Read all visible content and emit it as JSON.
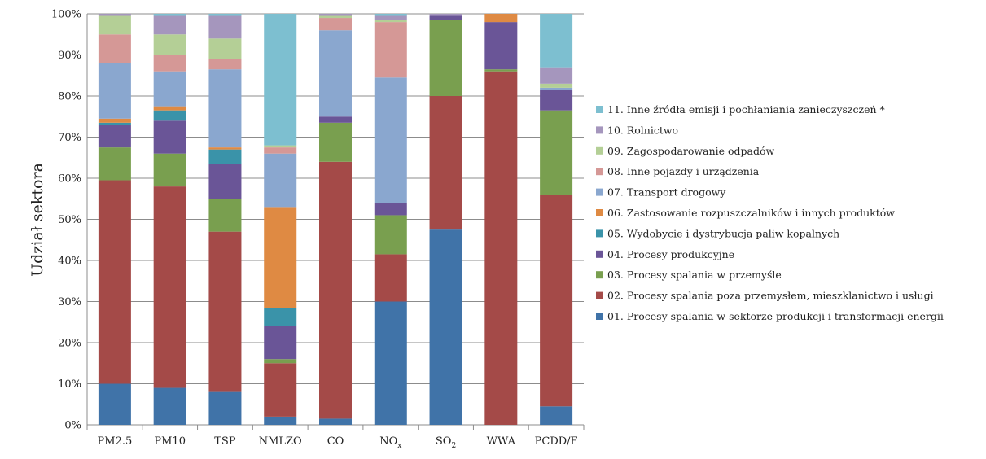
{
  "chart_data": {
    "type": "bar",
    "stacked": true,
    "percent": true,
    "ylabel": "Udział sektora",
    "xlabel": "",
    "ylim": [
      0,
      100
    ],
    "yticks": [
      "0%",
      "10%",
      "20%",
      "30%",
      "40%",
      "50%",
      "60%",
      "70%",
      "80%",
      "90%",
      "100%"
    ],
    "grid": true,
    "legend_position": "right",
    "categories": [
      {
        "base": "PM2.5",
        "sub": ""
      },
      {
        "base": "PM10",
        "sub": ""
      },
      {
        "base": "TSP",
        "sub": ""
      },
      {
        "base": "NMLZO",
        "sub": ""
      },
      {
        "base": "CO",
        "sub": ""
      },
      {
        "base": "NO",
        "sub": "x"
      },
      {
        "base": "SO",
        "sub": "2"
      },
      {
        "base": "WWA",
        "sub": ""
      },
      {
        "base": "PCDD/F",
        "sub": ""
      }
    ],
    "series": [
      {
        "name": "01. Procesy spalania w sektorze produkcji i transformacji energii",
        "color": "#4073a8",
        "values": [
          10,
          9,
          8,
          2,
          1.5,
          30,
          47.5,
          0,
          4.5
        ]
      },
      {
        "name": "02. Procesy spalania poza przemysłem, mieszklanictwo i usługi",
        "color": "#a44a48",
        "values": [
          49.5,
          49,
          39,
          13,
          62.5,
          11.5,
          32.5,
          86,
          51.5
        ]
      },
      {
        "name": "03. Procesy spalania w przemyśle",
        "color": "#799f4f",
        "values": [
          8,
          8,
          8,
          1,
          9.5,
          9.5,
          18.5,
          0.5,
          20.5
        ]
      },
      {
        "name": "04. Procesy produkcyjne",
        "color": "#6a5597",
        "values": [
          5.5,
          8,
          8.5,
          8,
          1.5,
          3,
          1,
          11.5,
          5
        ]
      },
      {
        "name": "05. Wydobycie i dystrybucja paliw kopalnych",
        "color": "#3a93a9",
        "values": [
          0.5,
          2.5,
          3.5,
          4.5,
          0,
          0,
          0,
          0,
          0
        ]
      },
      {
        "name": "06. Zastosowanie rozpuszczalników i innych produktów",
        "color": "#df8a43",
        "values": [
          1,
          1,
          0.5,
          24.5,
          0,
          0,
          0,
          2,
          0
        ]
      },
      {
        "name": "07. Transport drogowy",
        "color": "#8aa7cf",
        "values": [
          13.5,
          8.5,
          19,
          13,
          21,
          30.5,
          0,
          0,
          0.5
        ]
      },
      {
        "name": "08. Inne pojazdy i urządzenia",
        "color": "#d59896",
        "values": [
          7,
          4,
          2.5,
          1.5,
          3,
          13.5,
          0,
          0,
          0
        ]
      },
      {
        "name": "09. Zagospodarowanie odpadów",
        "color": "#b4cf96",
        "values": [
          4.5,
          5,
          5,
          0.5,
          0.5,
          0.5,
          0,
          0,
          1
        ]
      },
      {
        "name": "10. Rolnictwo",
        "color": "#a596bd",
        "values": [
          0.5,
          4.5,
          5.5,
          0,
          0.5,
          1,
          0.5,
          0,
          4
        ]
      },
      {
        "name": "11. Inne źródła emisji i pochłaniania zanieczyszczeń *",
        "color": "#7dbfd0",
        "values": [
          0,
          0.5,
          0.5,
          32,
          0,
          0.5,
          0,
          0,
          13
        ]
      }
    ]
  }
}
